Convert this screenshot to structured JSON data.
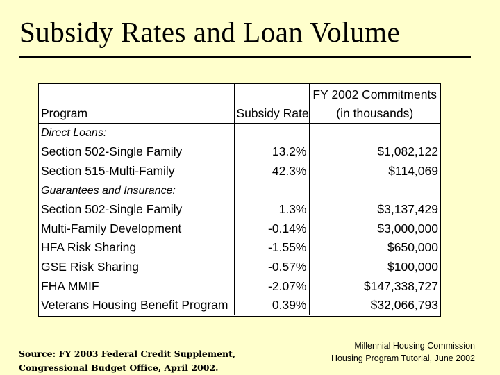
{
  "title": "Subsidy Rates and Loan Volume",
  "table": {
    "headers": {
      "program": "Program",
      "rate": "Subsidy Rate",
      "commitments_line1": "FY 2002 Commitments",
      "commitments_line2": "(in thousands)"
    },
    "rows": [
      {
        "type": "section",
        "program": "Direct Loans:",
        "rate": "",
        "commitments": ""
      },
      {
        "type": "item",
        "program": "Section 502-Single Family",
        "rate": "13.2%",
        "commitments": "$1,082,122"
      },
      {
        "type": "item",
        "program": "Section 515-Multi-Family",
        "rate": "42.3%",
        "commitments": "$114,069"
      },
      {
        "type": "section",
        "program": "Guarantees and Insurance:",
        "rate": "",
        "commitments": ""
      },
      {
        "type": "item",
        "program": "Section 502-Single Family",
        "rate": "1.3%",
        "commitments": "$3,137,429"
      },
      {
        "type": "item",
        "program": "Multi-Family Development",
        "rate": "-0.14%",
        "commitments": "$3,000,000"
      },
      {
        "type": "item",
        "program": "HFA Risk Sharing",
        "rate": "-1.55%",
        "commitments": "$650,000"
      },
      {
        "type": "item",
        "program": "GSE Risk Sharing",
        "rate": "-0.57%",
        "commitments": "$100,000"
      },
      {
        "type": "item",
        "program": "FHA MMIF",
        "rate": "-2.07%",
        "commitments": "$147,338,727"
      },
      {
        "type": "item",
        "program": "Veterans Housing Benefit Program",
        "rate": "0.39%",
        "commitments": "$32,066,793"
      }
    ]
  },
  "footer": {
    "source_line1": "Source: FY 2003 Federal Credit Supplement,",
    "source_line2": "Congressional Budget Office, April 2002.",
    "credit_line1": "Millennial Housing Commission",
    "credit_line2": "Housing Program Tutorial, June 2002"
  }
}
